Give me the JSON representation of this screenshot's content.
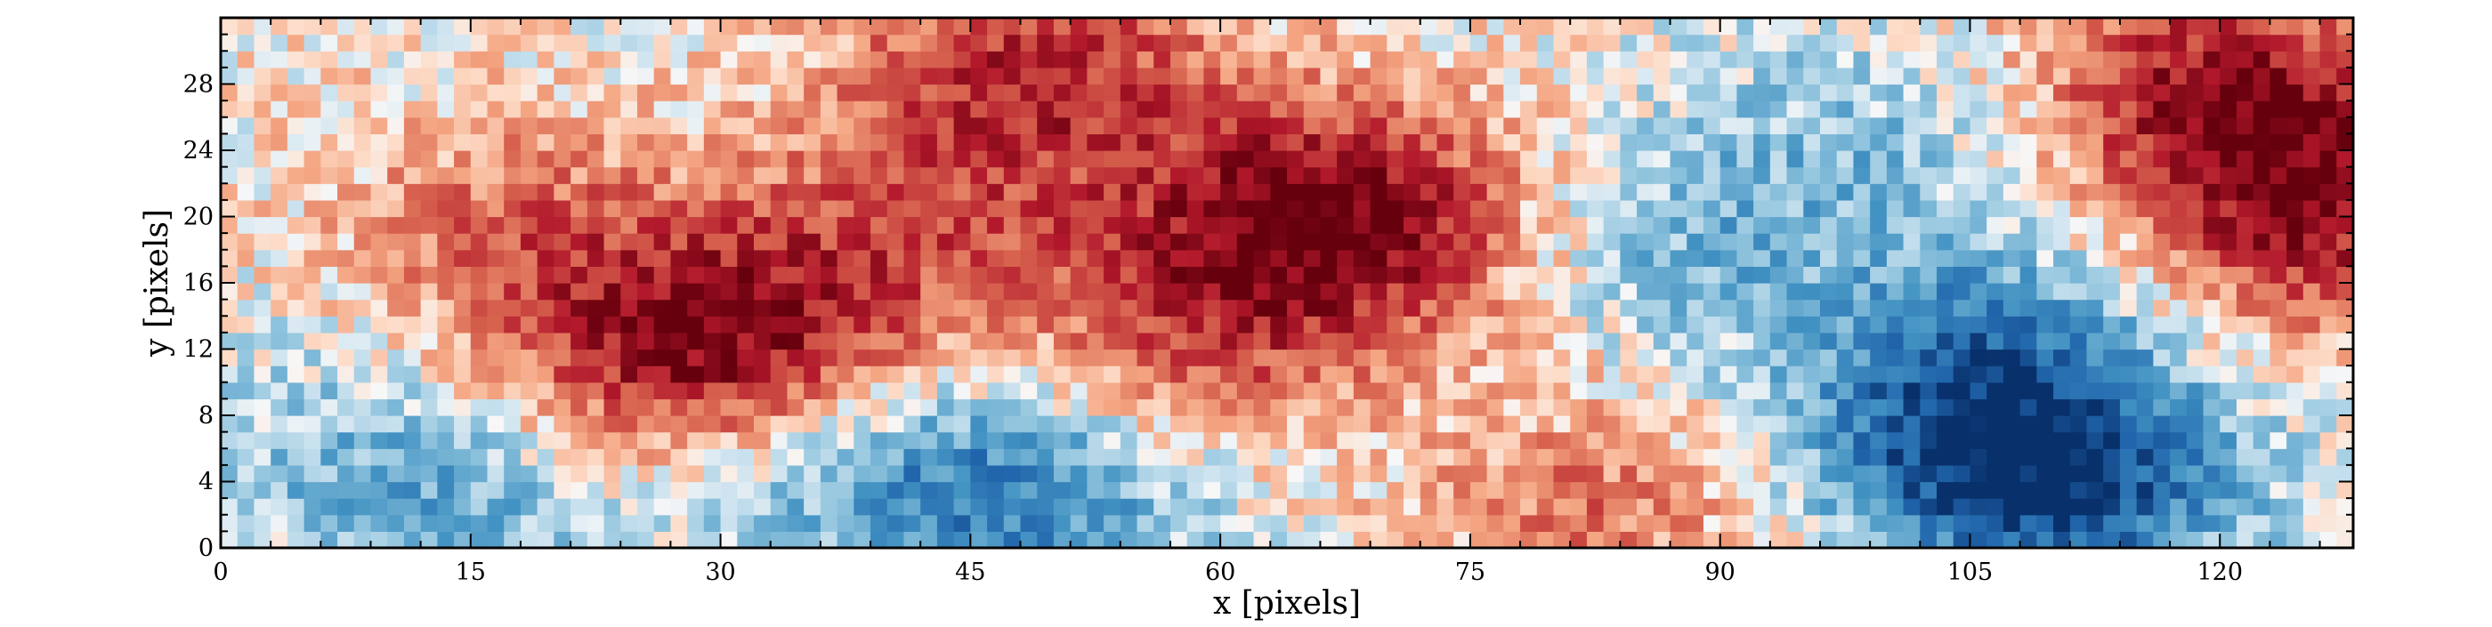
{
  "chart_data": {
    "type": "heatmap",
    "title": "",
    "xlabel": "x [pixels]",
    "ylabel": "y [pixels]",
    "xlim": [
      0,
      128
    ],
    "ylim": [
      0,
      32
    ],
    "x_ticks": [
      "0",
      "15",
      "30",
      "45",
      "60",
      "75",
      "90",
      "105",
      "120"
    ],
    "y_ticks": [
      "0",
      "4",
      "8",
      "12",
      "16",
      "20",
      "24",
      "28"
    ],
    "grid": false,
    "colormap": "RdBu_r",
    "colors": {
      "low": "#08306b",
      "mid": "#f7f7f7",
      "high": "#67000d"
    },
    "value_range": [
      -1,
      1
    ],
    "grid_size": {
      "cols": 128,
      "rows": 32
    },
    "field_features": [
      {
        "x": 26,
        "y": 11,
        "value": 0.55
      },
      {
        "x": 33,
        "y": 13,
        "value": 0.5
      },
      {
        "x": 17,
        "y": 19,
        "value": 0.4
      },
      {
        "x": 48,
        "y": 29,
        "value": 0.65
      },
      {
        "x": 42,
        "y": 20,
        "value": 0.35
      },
      {
        "x": 63,
        "y": 20,
        "value": 0.55
      },
      {
        "x": 70,
        "y": 19,
        "value": 0.55
      },
      {
        "x": 58,
        "y": 12,
        "value": 0.45
      },
      {
        "x": 82,
        "y": 2,
        "value": 0.4
      },
      {
        "x": 122,
        "y": 24,
        "value": 0.6
      },
      {
        "x": 126,
        "y": 18,
        "value": 0.5
      },
      {
        "x": 118,
        "y": 29,
        "value": 0.45
      },
      {
        "x": 104,
        "y": 6,
        "value": -0.6
      },
      {
        "x": 111,
        "y": 3,
        "value": -0.65
      },
      {
        "x": 106,
        "y": 13,
        "value": -0.4
      },
      {
        "x": 86,
        "y": 18,
        "value": -0.35
      },
      {
        "x": 13,
        "y": 2,
        "value": -0.4
      },
      {
        "x": 49,
        "y": 2,
        "value": -0.4
      },
      {
        "x": 43,
        "y": 4,
        "value": -0.3
      },
      {
        "x": 98,
        "y": 25,
        "value": -0.25
      },
      {
        "x": 35,
        "y": 4,
        "value": -0.2
      },
      {
        "x": 3,
        "y": 8,
        "value": -0.15
      }
    ]
  }
}
